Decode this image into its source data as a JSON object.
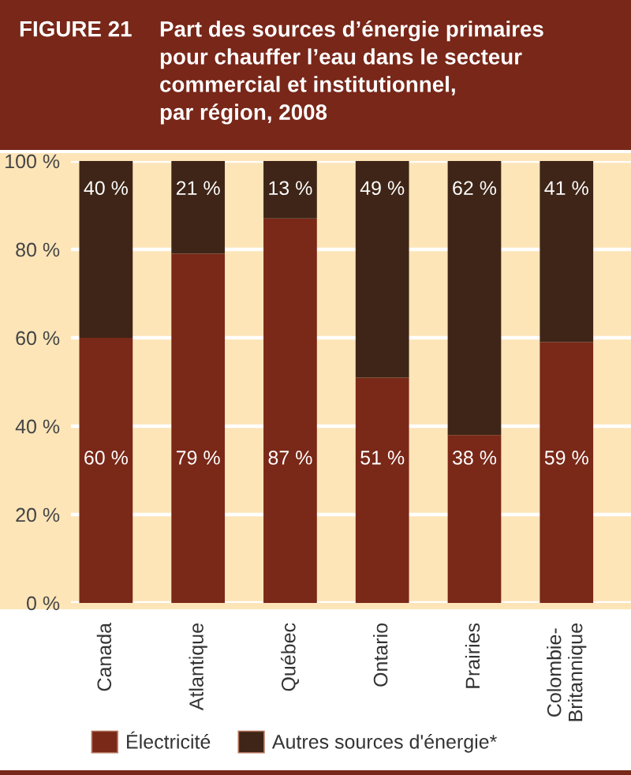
{
  "chart_data": {
    "type": "bar",
    "stacked": true,
    "title": "Part des sources d’énergie primaires\npour chauffer l’eau dans le secteur\ncommercial et institutionnel,\npar région, 2008",
    "annotations": [
      "FIGURE 21"
    ],
    "categories": [
      "Canada",
      "Atlantique",
      "Québec",
      "Ontario",
      "Prairies",
      "Colombie-\nBritannique"
    ],
    "series": [
      {
        "name": "Électricité",
        "color": "#7a2818",
        "values": [
          60,
          79,
          87,
          51,
          38,
          59
        ],
        "value_labels": [
          "60 %",
          "79 %",
          "87 %",
          "51 %",
          "38 %",
          "59 %"
        ]
      },
      {
        "name": "Autres sources d'énergie*",
        "color": "#3e2517",
        "values": [
          40,
          21,
          13,
          49,
          62,
          41
        ],
        "value_labels": [
          "40 %",
          "21 %",
          "13 %",
          "49 %",
          "62 %",
          "41 %"
        ]
      }
    ],
    "ylim": [
      0,
      100
    ],
    "yticks": [
      {
        "value": 0,
        "label": "0 %"
      },
      {
        "value": 20,
        "label": "20 %"
      },
      {
        "value": 40,
        "label": "40 %"
      },
      {
        "value": 60,
        "label": "60 %"
      },
      {
        "value": 80,
        "label": "80 %"
      },
      {
        "value": 100,
        "label": "100 %"
      }
    ],
    "grid": "y",
    "legend": "bottom"
  }
}
